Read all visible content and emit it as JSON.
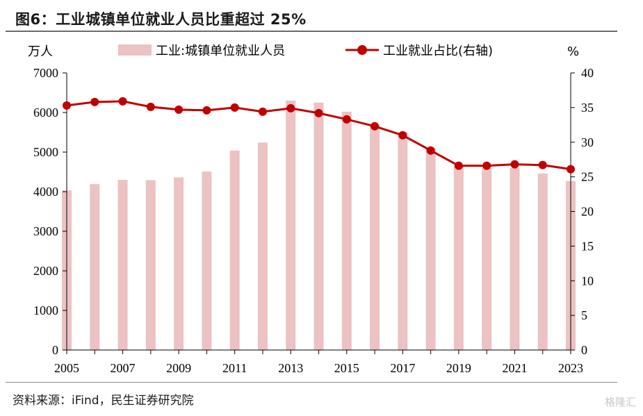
{
  "title": "图6：工业城镇单位就业人员比重超过 25%",
  "source": "资料来源：iFind，民生证券研究院",
  "watermark": "格隆汇",
  "colors": {
    "bar": "#ecc2c2",
    "line": "#c00000"
  },
  "chart_data": {
    "type": "bar+line",
    "x": [
      2005,
      2006,
      2007,
      2008,
      2009,
      2010,
      2011,
      2012,
      2013,
      2014,
      2015,
      2016,
      2017,
      2018,
      2019,
      2020,
      2021,
      2022,
      2023
    ],
    "x_tick_labels": [
      "2005",
      "2007",
      "2009",
      "2011",
      "2013",
      "2015",
      "2017",
      "2019",
      "2021",
      "2023"
    ],
    "left_unit": "万人",
    "right_unit": "%",
    "left_ylim": [
      0,
      7000
    ],
    "left_ticks": [
      "0",
      "1000",
      "2000",
      "3000",
      "4000",
      "5000",
      "6000",
      "7000"
    ],
    "right_ylim": [
      0,
      40
    ],
    "right_ticks": [
      "0",
      "5",
      "10",
      "15",
      "20",
      "25",
      "30",
      "35",
      "40"
    ],
    "legend_position": "top",
    "grid": false,
    "series": [
      {
        "name": "工业:城镇单位就业人员",
        "type": "bar",
        "axis": "left",
        "values": [
          4030,
          4190,
          4300,
          4290,
          4360,
          4510,
          5040,
          5240,
          6300,
          6250,
          6020,
          5700,
          5500,
          5100,
          4660,
          4600,
          4600,
          4460,
          4270
        ]
      },
      {
        "name": "工业就业占比(右轴)",
        "type": "line",
        "axis": "right",
        "values": [
          35.3,
          35.8,
          35.9,
          35.1,
          34.7,
          34.6,
          35.0,
          34.4,
          34.9,
          34.2,
          33.3,
          32.3,
          31.0,
          28.8,
          26.6,
          26.6,
          26.8,
          26.7,
          26.1
        ]
      }
    ]
  }
}
